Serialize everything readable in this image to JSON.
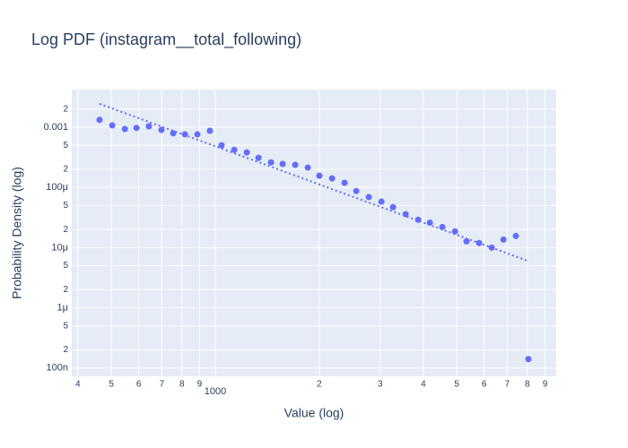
{
  "chart_data": {
    "type": "scatter",
    "title": "Log PDF (instagram__total_following)",
    "x_label": "Value (log)",
    "y_label": "Probability Density (log)",
    "xlog": true,
    "ylog": true,
    "grid": true,
    "xlim": [
      384,
      9700
    ],
    "ylim": [
      7.3e-08,
      0.0042
    ],
    "xticks": [
      {
        "value": 400,
        "label": "4"
      },
      {
        "value": 500,
        "label": "5"
      },
      {
        "value": 600,
        "label": "6"
      },
      {
        "value": 700,
        "label": "7"
      },
      {
        "value": 800,
        "label": "8"
      },
      {
        "value": 900,
        "label": "9"
      },
      1000,
      {
        "value": 2000,
        "label": "2"
      },
      {
        "value": 3000,
        "label": "3"
      },
      {
        "value": 4000,
        "label": "4"
      },
      {
        "value": 5000,
        "label": "5"
      },
      {
        "value": 6000,
        "label": "6"
      },
      {
        "value": 7000,
        "label": "7"
      },
      {
        "value": 8000,
        "label": "8"
      },
      {
        "value": 9000,
        "label": "9"
      }
    ],
    "yticks": [
      {
        "value": 0.002,
        "label": "2"
      },
      0.001,
      {
        "value": 0.0005,
        "label": "5"
      },
      {
        "value": 0.0002,
        "label": "2"
      },
      {
        "value": 0.0001,
        "label": "100μ"
      },
      {
        "value": 5e-05,
        "label": "5"
      },
      {
        "value": 2e-05,
        "label": "2"
      },
      {
        "value": 1e-05,
        "label": "10μ"
      },
      {
        "value": 5e-06,
        "label": "5"
      },
      {
        "value": 2e-06,
        "label": "2"
      },
      {
        "value": 1e-06,
        "label": "1μ"
      },
      {
        "value": 5e-07,
        "label": "5"
      },
      {
        "value": 2e-07,
        "label": "2"
      },
      {
        "value": 1e-07,
        "label": "100n"
      }
    ],
    "series": [
      {
        "color": "#636efa",
        "mode": "markers",
        "x": [
          462,
          503,
          547,
          591,
          642,
          698,
          755,
          816,
          887,
          964,
          1042,
          1134,
          1233,
          1333,
          1449,
          1566,
          1703,
          1852,
          2000,
          2177,
          2366,
          2558,
          2781,
          3025,
          3268,
          3555,
          3864,
          4178,
          4541,
          4939,
          5333,
          5802,
          6310,
          6823,
          7413,
          8057
        ],
        "values": [
          0.00132,
          0.00107,
          0.00093,
          0.00097,
          0.00103,
          0.0009,
          0.00079,
          0.00076,
          0.00076,
          0.00087,
          0.0005,
          0.00042,
          0.00038,
          0.00031,
          0.00026,
          0.000245,
          0.000236,
          0.000213,
          0.000156,
          0.000141,
          0.000119,
          8.7e-05,
          6.9e-05,
          5.8e-05,
          4.7e-05,
          3.6e-05,
          2.9e-05,
          2.6e-05,
          2.2e-05,
          1.86e-05,
          1.27e-05,
          1.19e-05,
          1e-05,
          1.36e-05,
          1.56e-05,
          1.41e-07
        ]
      },
      {
        "color": "#636efa",
        "mode": "lines",
        "dash": "dot",
        "x": [
          462,
          8057
        ],
        "values": [
          0.00244,
          5.97e-06
        ]
      }
    ]
  }
}
